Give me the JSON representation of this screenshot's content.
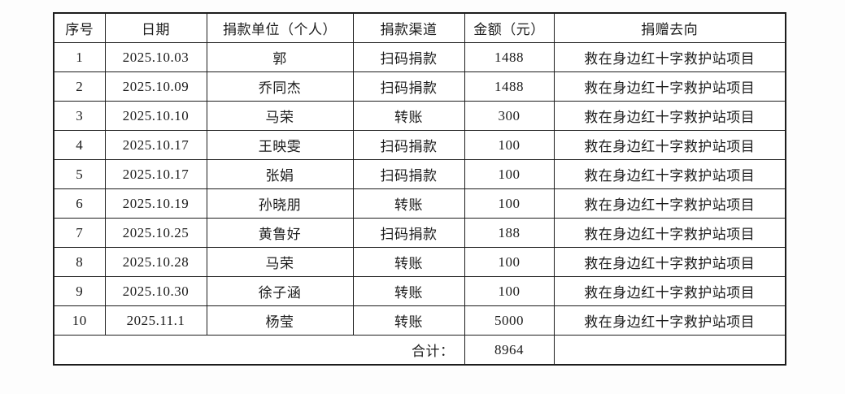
{
  "colors": {
    "background": "#ffffff",
    "border": "#1c1c1c",
    "text": "#1c1c1c"
  },
  "table": {
    "headers": {
      "no": "序号",
      "date": "日期",
      "donor": "捐款单位（个人）",
      "channel": "捐款渠道",
      "amount": "金额（元）",
      "destination": "捐赠去向"
    },
    "rows": [
      {
        "no": "1",
        "date": "2025.10.03",
        "donor": "郭",
        "channel": "扫码捐款",
        "amount": "1488",
        "destination": "救在身边红十字救护站项目"
      },
      {
        "no": "2",
        "date": "2025.10.09",
        "donor": "乔同杰",
        "channel": "扫码捐款",
        "amount": "1488",
        "destination": "救在身边红十字救护站项目"
      },
      {
        "no": "3",
        "date": "2025.10.10",
        "donor": "马荣",
        "channel": "转账",
        "amount": "300",
        "destination": "救在身边红十字救护站项目"
      },
      {
        "no": "4",
        "date": "2025.10.17",
        "donor": "王映雯",
        "channel": "扫码捐款",
        "amount": "100",
        "destination": "救在身边红十字救护站项目"
      },
      {
        "no": "5",
        "date": "2025.10.17",
        "donor": "张娟",
        "channel": "扫码捐款",
        "amount": "100",
        "destination": "救在身边红十字救护站项目"
      },
      {
        "no": "6",
        "date": "2025.10.19",
        "donor": "孙晓朋",
        "channel": "转账",
        "amount": "100",
        "destination": "救在身边红十字救护站项目"
      },
      {
        "no": "7",
        "date": "2025.10.25",
        "donor": "黄鲁好",
        "channel": "扫码捐款",
        "amount": "188",
        "destination": "救在身边红十字救护站项目"
      },
      {
        "no": "8",
        "date": "2025.10.28",
        "donor": "马荣",
        "channel": "转账",
        "amount": "100",
        "destination": "救在身边红十字救护站项目"
      },
      {
        "no": "9",
        "date": "2025.10.30",
        "donor": "徐子涵",
        "channel": "转账",
        "amount": "100",
        "destination": "救在身边红十字救护站项目"
      },
      {
        "no": "10",
        "date": "2025.11.1",
        "donor": "杨莹",
        "channel": "转账",
        "amount": "5000",
        "destination": "救在身边红十字救护站项目"
      }
    ],
    "total": {
      "label": "合计：",
      "amount": "8964",
      "destination": ""
    }
  }
}
